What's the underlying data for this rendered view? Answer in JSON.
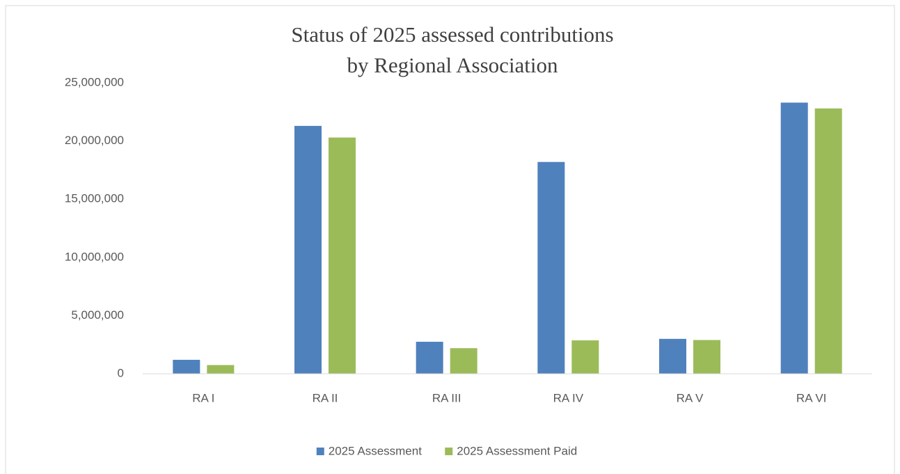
{
  "chart_data": {
    "type": "bar",
    "title": [
      "Status of 2025 assessed contributions",
      "by Regional Association"
    ],
    "categories": [
      "RA I",
      "RA II",
      "RA III",
      "RA IV",
      "RA V",
      "RA VI"
    ],
    "series": [
      {
        "name": "2025 Assessment",
        "color": "#4f81bd",
        "values": [
          1200000,
          21300000,
          2750000,
          18200000,
          3000000,
          23300000
        ]
      },
      {
        "name": "2025 Assessment Paid",
        "color": "#9bbb59",
        "values": [
          750000,
          20300000,
          2200000,
          2870000,
          2900000,
          22800000
        ]
      }
    ],
    "ylim": [
      0,
      25000000
    ],
    "yticks": [
      0,
      {
        "value": 5000000,
        "label": "5,000,000"
      },
      {
        "value": 10000000,
        "label": "10,000,000"
      },
      {
        "value": 15000000,
        "label": "15,000,000"
      },
      {
        "value": 20000000,
        "label": "20,000,000"
      },
      {
        "value": 25000000,
        "label": "25,000,000"
      }
    ],
    "grid": false,
    "legend": "bottom"
  }
}
